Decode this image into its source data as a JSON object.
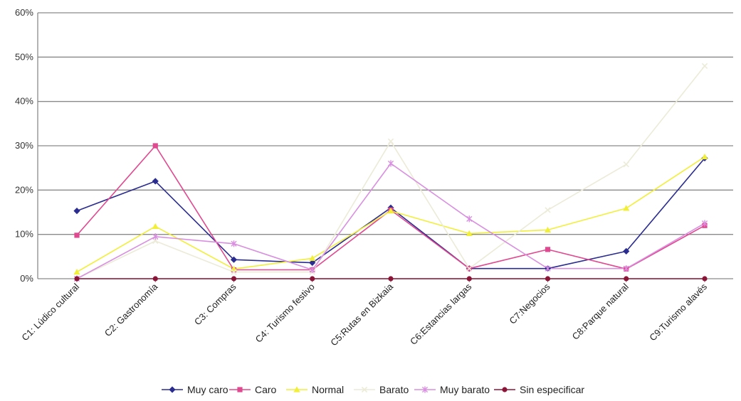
{
  "chart_data": {
    "type": "line",
    "categories": [
      "C1: Lúdico cultural",
      "C2: Gastronomía",
      "C3: Compras",
      "C4: Turismo festivo",
      "C5:Rutas en Bizkaia",
      "C6:Estancias largas",
      "C7:Negocios",
      "C8:Parque natural",
      "C9:Turismo alavés"
    ],
    "y_ticks": [
      "0%",
      "10%",
      "20%",
      "30%",
      "40%",
      "50%",
      "60%"
    ],
    "ylim": [
      0,
      60
    ],
    "grid": true,
    "legend_position": "bottom",
    "series": [
      {
        "name": "Muy caro",
        "color": "#2b2c8f",
        "marker": "diamond",
        "values": [
          15.3,
          22,
          4.3,
          3.6,
          16,
          2.3,
          2.3,
          6.2,
          27.2
        ]
      },
      {
        "name": "Caro",
        "color": "#e0488f",
        "marker": "square",
        "values": [
          9.8,
          30,
          2,
          2,
          15.5,
          2.3,
          6.6,
          2.2,
          12
        ]
      },
      {
        "name": "Normal",
        "color": "#f2ef3a",
        "marker": "triangle",
        "values": [
          1.5,
          11.8,
          2.2,
          4.6,
          15.3,
          10.2,
          11,
          15.9,
          27.5
        ]
      },
      {
        "name": "Barato",
        "color": "#ecebd8",
        "marker": "x",
        "values": [
          0,
          8.5,
          1.5,
          1.5,
          31,
          2.3,
          15.5,
          25.8,
          48
        ]
      },
      {
        "name": "Muy barato",
        "color": "#d98fe0",
        "marker": "star",
        "values": [
          0,
          9.5,
          7.9,
          2,
          26,
          13.5,
          2.3,
          2.3,
          12.5
        ]
      },
      {
        "name": "Sin especificar",
        "color": "#8b1538",
        "marker": "circle",
        "values": [
          0,
          0,
          0,
          0,
          0,
          0,
          0,
          0,
          0
        ]
      }
    ]
  }
}
